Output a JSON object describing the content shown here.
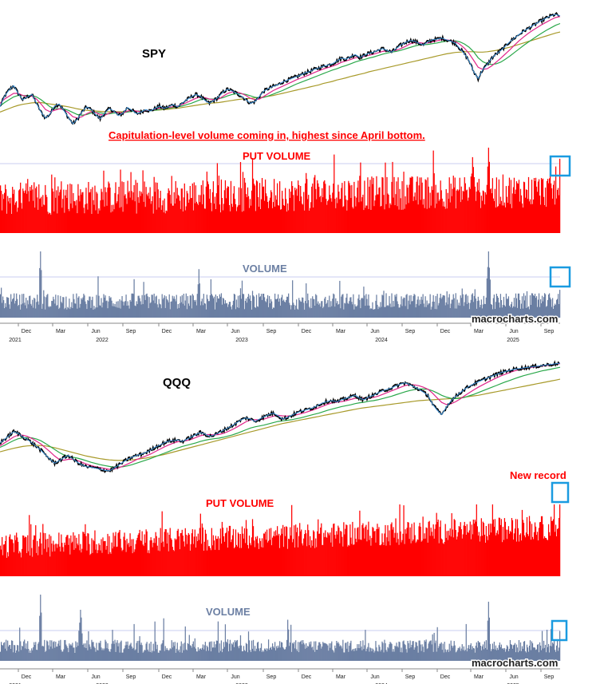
{
  "colors": {
    "price": "#000000",
    "price_overlay": "#3a8fd6",
    "ma_fast": "#e0258a",
    "ma_mid": "#2aa84a",
    "ma_slow": "#a89a2a",
    "put_volume": "#ff0000",
    "volume": "#6b7fa3",
    "highlight_box": "#1a9be0",
    "ref_line": "#c9cdf0",
    "annotation": "#ff0000",
    "volume_label": "#6b7fa3"
  },
  "annotation_spy": "Capitulation-level volume coming in, highest since April bottom.",
  "annotation_qqq": "New record",
  "watermark": "macrocharts.com",
  "chart_data": [
    {
      "type": "line",
      "title": "SPY",
      "x_start": "2021-10",
      "x_end": "2025-09",
      "close": [
        410,
        440,
        458,
        470,
        448,
        430,
        438,
        445,
        420,
        395,
        378,
        390,
        412,
        418,
        400,
        380,
        362,
        375,
        395,
        410,
        402,
        388,
        376,
        392,
        405,
        398,
        385,
        392,
        408,
        400,
        390,
        395,
        402,
        398,
        405,
        412,
        406,
        410,
        416,
        410,
        420,
        430,
        438,
        445,
        440,
        428,
        420,
        428,
        438,
        452,
        460,
        455,
        448,
        440,
        430,
        420,
        425,
        440,
        455,
        462,
        468,
        472,
        480,
        485,
        490,
        495,
        500,
        506,
        510,
        516,
        520,
        525,
        528,
        532,
        540,
        548,
        545,
        552,
        558,
        550,
        556,
        562,
        565,
        570,
        575,
        570,
        565,
        575,
        585,
        592,
        598,
        596,
        590,
        585,
        595,
        600,
        602,
        605,
        600,
        596,
        590,
        575,
        560,
        540,
        510,
        490,
        515,
        530,
        548,
        560,
        570,
        582,
        595,
        605,
        615,
        625,
        632,
        640,
        648,
        655,
        662,
        668,
        672,
        668
      ],
      "ma_fast": [
        420,
        432,
        440,
        448,
        448,
        442,
        440,
        440,
        432,
        418,
        402,
        396,
        400,
        404,
        402,
        394,
        382,
        378,
        382,
        390,
        396,
        394,
        388,
        386,
        392,
        396,
        394,
        392,
        398,
        400,
        398,
        396,
        398,
        400,
        402,
        406,
        406,
        408,
        410,
        412,
        416,
        422,
        428,
        434,
        438,
        436,
        432,
        430,
        432,
        440,
        448,
        452,
        452,
        448,
        442,
        434,
        430,
        432,
        440,
        448,
        456,
        462,
        468,
        474,
        480,
        486,
        491,
        496,
        501,
        507,
        512,
        517,
        521,
        525,
        530,
        536,
        540,
        544,
        549,
        551,
        553,
        556,
        559,
        563,
        567,
        568,
        568,
        570,
        575,
        581,
        588,
        592,
        592,
        590,
        591,
        594,
        597,
        600,
        600,
        598,
        595,
        587,
        576,
        561,
        542,
        522,
        516,
        518,
        526,
        537,
        548,
        560,
        572,
        585,
        597,
        608,
        618,
        627,
        635,
        643,
        650,
        657,
        663,
        666
      ],
      "ma_mid": [
        412,
        422,
        430,
        438,
        442,
        442,
        442,
        442,
        438,
        430,
        420,
        410,
        405,
        404,
        404,
        400,
        394,
        388,
        386,
        388,
        392,
        394,
        393,
        390,
        390,
        392,
        393,
        393,
        395,
        397,
        398,
        398,
        398,
        399,
        400,
        402,
        404,
        406,
        408,
        410,
        412,
        416,
        420,
        425,
        430,
        432,
        432,
        432,
        433,
        436,
        441,
        445,
        447,
        447,
        445,
        441,
        437,
        435,
        437,
        441,
        446,
        451,
        456,
        462,
        468,
        474,
        479,
        484,
        489,
        494,
        499,
        504,
        509,
        514,
        518,
        523,
        527,
        532,
        537,
        541,
        544,
        548,
        551,
        555,
        559,
        562,
        565,
        567,
        570,
        574,
        578,
        582,
        585,
        586,
        587,
        589,
        591,
        594,
        596,
        597,
        597,
        594,
        588,
        579,
        566,
        549,
        538,
        532,
        530,
        532,
        537,
        545,
        554,
        564,
        574,
        584,
        593,
        602,
        611,
        619,
        627,
        634,
        641,
        646
      ],
      "ma_slow": [
        395,
        400,
        405,
        410,
        414,
        417,
        419,
        421,
        422,
        422,
        420,
        418,
        416,
        414,
        412,
        410,
        407,
        404,
        402,
        400,
        399,
        398,
        397,
        396,
        396,
        396,
        396,
        396,
        396,
        397,
        397,
        398,
        398,
        399,
        400,
        401,
        402,
        403,
        405,
        406,
        408,
        410,
        412,
        414,
        416,
        418,
        420,
        421,
        422,
        424,
        426,
        428,
        430,
        432,
        433,
        434,
        435,
        436,
        438,
        440,
        442,
        445,
        448,
        451,
        454,
        457,
        460,
        463,
        466,
        469,
        472,
        476,
        479,
        482,
        486,
        489,
        492,
        496,
        499,
        502,
        505,
        509,
        512,
        515,
        518,
        521,
        524,
        527,
        530,
        533,
        536,
        539,
        542,
        545,
        548,
        551,
        554,
        557,
        560,
        562,
        564,
        565,
        566,
        566,
        566,
        565,
        565,
        566,
        568,
        570,
        573,
        576,
        579,
        583,
        587,
        591,
        595,
        599,
        603,
        607,
        611,
        615,
        619,
        622
      ]
    },
    {
      "type": "bar",
      "title": "PUT VOLUME",
      "description": "SPY put volume (daily), highest since April 2025 bottom at latest bar",
      "peak_relative": 1.0,
      "latest_relative": 0.87
    },
    {
      "type": "bar",
      "title": "VOLUME",
      "description": "SPY share volume (daily)",
      "latest_relative": 0.42
    },
    {
      "type": "line",
      "title": "QQQ",
      "x_start": "2021-10",
      "x_end": "2025-09",
      "close": [
        360,
        372,
        385,
        398,
        392,
        380,
        372,
        360,
        348,
        335,
        320,
        305,
        292,
        300,
        310,
        318,
        306,
        295,
        286,
        280,
        278,
        275,
        272,
        268,
        266,
        275,
        285,
        295,
        305,
        312,
        318,
        322,
        328,
        335,
        345,
        352,
        360,
        366,
        368,
        370,
        365,
        372,
        380,
        388,
        395,
        390,
        382,
        386,
        394,
        402,
        410,
        418,
        428,
        438,
        444,
        440,
        432,
        440,
        448,
        455,
        460,
        452,
        440,
        445,
        452,
        460,
        466,
        470,
        475,
        480,
        488,
        495,
        500,
        502,
        498,
        505,
        510,
        515,
        520,
        510,
        505,
        515,
        520,
        528,
        535,
        540,
        545,
        552,
        558,
        562,
        555,
        548,
        540,
        530,
        520,
        490,
        470,
        455,
        480,
        500,
        515,
        528,
        540,
        550,
        558,
        565,
        572,
        578,
        584,
        590,
        596,
        600,
        604,
        608,
        610,
        612,
        614,
        616,
        618,
        620,
        622,
        624,
        626,
        628
      ],
      "ma_fast": [
        350,
        360,
        370,
        380,
        386,
        386,
        382,
        375,
        366,
        356,
        343,
        330,
        316,
        305,
        302,
        305,
        305,
        301,
        295,
        289,
        284,
        280,
        277,
        274,
        271,
        272,
        276,
        282,
        289,
        296,
        304,
        310,
        316,
        322,
        330,
        338,
        346,
        353,
        359,
        364,
        366,
        368,
        372,
        378,
        384,
        388,
        388,
        387,
        388,
        392,
        398,
        405,
        413,
        422,
        431,
        437,
        438,
        438,
        440,
        445,
        450,
        453,
        451,
        450,
        451,
        454,
        458,
        462,
        467,
        472,
        478,
        484,
        490,
        495,
        497,
        499,
        502,
        506,
        510,
        511,
        510,
        511,
        513,
        517,
        523,
        529,
        535,
        541,
        547,
        553,
        556,
        555,
        552,
        547,
        540,
        527,
        511,
        496,
        489,
        491,
        498,
        507,
        518,
        528,
        538,
        547,
        555,
        563,
        571,
        578,
        585,
        591,
        597,
        602,
        606,
        609,
        612,
        614,
        616,
        618,
        620,
        622,
        624,
        626
      ],
      "ma_mid": [
        345,
        352,
        360,
        368,
        374,
        377,
        378,
        377,
        373,
        367,
        358,
        348,
        338,
        328,
        320,
        315,
        312,
        309,
        305,
        300,
        295,
        291,
        287,
        284,
        281,
        279,
        279,
        280,
        283,
        287,
        292,
        297,
        302,
        307,
        313,
        319,
        325,
        331,
        337,
        343,
        348,
        352,
        356,
        360,
        365,
        369,
        372,
        374,
        376,
        379,
        383,
        387,
        392,
        398,
        404,
        410,
        414,
        417,
        420,
        424,
        428,
        432,
        434,
        436,
        438,
        441,
        444,
        448,
        452,
        456,
        460,
        465,
        470,
        474,
        478,
        482,
        485,
        488,
        492,
        495,
        497,
        500,
        502,
        505,
        509,
        513,
        517,
        522,
        527,
        532,
        536,
        539,
        541,
        541,
        540,
        535,
        528,
        520,
        514,
        510,
        509,
        510,
        513,
        518,
        523,
        529,
        535,
        541,
        547,
        553,
        559,
        565,
        570,
        576,
        581,
        586,
        590,
        594,
        598,
        602,
        605,
        608,
        611,
        614
      ],
      "ma_slow": [
        330,
        334,
        338,
        342,
        345,
        348,
        350,
        351,
        352,
        351,
        350,
        347,
        344,
        340,
        336,
        332,
        328,
        324,
        320,
        316,
        313,
        310,
        307,
        305,
        303,
        302,
        301,
        301,
        302,
        303,
        305,
        307,
        309,
        312,
        315,
        318,
        321,
        325,
        329,
        333,
        337,
        341,
        345,
        349,
        353,
        357,
        361,
        365,
        369,
        373,
        377,
        381,
        385,
        389,
        393,
        397,
        401,
        405,
        409,
        413,
        417,
        421,
        425,
        428,
        431,
        434,
        437,
        440,
        443,
        446,
        449,
        452,
        455,
        458,
        461,
        464,
        467,
        470,
        473,
        476,
        478,
        480,
        482,
        484,
        486,
        488,
        490,
        492,
        494,
        496,
        498,
        500,
        502,
        503,
        504,
        505,
        506,
        507,
        508,
        509,
        510,
        512,
        514,
        516,
        518,
        520,
        523,
        526,
        529,
        532,
        535,
        538,
        541,
        544,
        547,
        550,
        553,
        556,
        559,
        562,
        565,
        568,
        571,
        574
      ]
    },
    {
      "type": "bar",
      "title": "PUT VOLUME",
      "description": "QQQ put volume (daily), new record at latest bar",
      "latest_relative": 1.0
    },
    {
      "type": "bar",
      "title": "VOLUME",
      "description": "QQQ share volume (daily)",
      "latest_relative": 0.45
    }
  ],
  "x_axis": {
    "months": [
      "Dec",
      "Mar",
      "Jun",
      "Sep",
      "Dec",
      "Mar",
      "Jun",
      "Sep",
      "Dec",
      "Mar",
      "Jun",
      "Sep",
      "Dec",
      "Mar",
      "Jun",
      "Sep"
    ],
    "years": [
      "2021",
      "2022",
      "2023",
      "2024",
      "2025"
    ]
  }
}
